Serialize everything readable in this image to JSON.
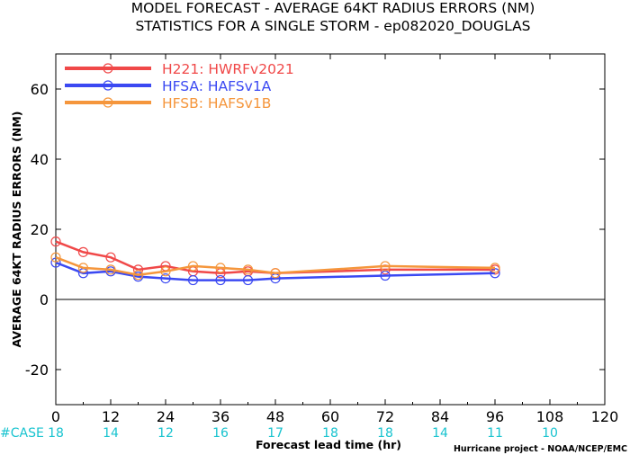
{
  "title": {
    "line1": "MODEL FORECAST - AVERAGE 64KT RADIUS ERRORS (NM)",
    "line2": "STATISTICS FOR A SINGLE STORM - ep082020_DOUGLAS"
  },
  "credit": "Hurricane project - NOAA/NCEP/EMC",
  "case_header": "#CASE",
  "chart_data": {
    "type": "line",
    "title": "MODEL FORECAST - AVERAGE 64KT RADIUS ERRORS (NM)",
    "subtitle": "STATISTICS FOR A SINGLE STORM - ep082020_DOUGLAS",
    "xlabel": "Forecast lead time (hr)",
    "ylabel": "AVERAGE 64KT RADIUS ERRORS (NM)",
    "xlim": [
      0,
      120
    ],
    "ylim": [
      -30,
      70
    ],
    "xticks": [
      0,
      12,
      24,
      36,
      48,
      60,
      72,
      84,
      96,
      108,
      120
    ],
    "yticks": [
      -20,
      0,
      20,
      40,
      60
    ],
    "zero_line": true,
    "grid": false,
    "legend_position": "top-left",
    "series": [
      {
        "name": "H221: HWRFv2021",
        "color": "#f04848",
        "x": [
          0,
          6,
          12,
          18,
          24,
          30,
          36,
          42,
          48,
          72,
          96
        ],
        "y": [
          16.5,
          13.5,
          12,
          8.5,
          9.5,
          8,
          7.5,
          8,
          7.5,
          8.5,
          8.5
        ]
      },
      {
        "name": "HFSA: HAFSv1A",
        "color": "#3b49f2",
        "x": [
          0,
          6,
          12,
          18,
          24,
          30,
          36,
          42,
          48,
          72,
          96
        ],
        "y": [
          10.5,
          7.5,
          8,
          6.5,
          6,
          5.5,
          5.5,
          5.5,
          6,
          6.8,
          7.5
        ]
      },
      {
        "name": "HFSB: HAFSv1B",
        "color": "#f5963c",
        "x": [
          0,
          6,
          12,
          18,
          24,
          30,
          36,
          42,
          48,
          72,
          96
        ],
        "y": [
          12,
          9,
          8.5,
          7,
          8,
          9.5,
          9,
          8.5,
          7.5,
          9.5,
          9
        ]
      }
    ],
    "case_counts": [
      {
        "x": 0,
        "value": "18"
      },
      {
        "x": 12,
        "value": "14"
      },
      {
        "x": 24,
        "value": "12"
      },
      {
        "x": 36,
        "value": "16"
      },
      {
        "x": 48,
        "value": "17"
      },
      {
        "x": 60,
        "value": "18"
      },
      {
        "x": 72,
        "value": "18"
      },
      {
        "x": 84,
        "value": "14"
      },
      {
        "x": 96,
        "value": "11"
      },
      {
        "x": 108,
        "value": "10"
      }
    ]
  }
}
